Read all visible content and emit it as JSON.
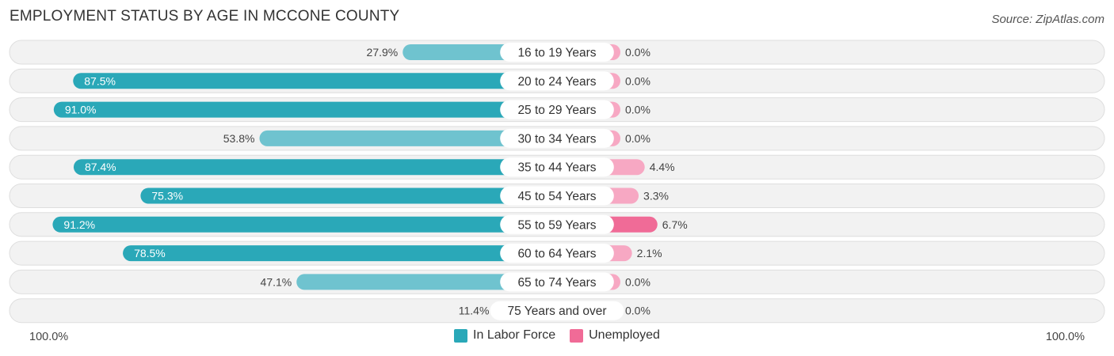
{
  "chart_data": {
    "type": "bar",
    "orientation": "diverging-horizontal",
    "title": "EMPLOYMENT STATUS BY AGE IN MCCONE COUNTY",
    "source": "Source: ZipAtlas.com",
    "categories": [
      "16 to 19 Years",
      "20 to 24 Years",
      "25 to 29 Years",
      "30 to 34 Years",
      "35 to 44 Years",
      "45 to 54 Years",
      "55 to 59 Years",
      "60 to 64 Years",
      "65 to 74 Years",
      "75 Years and over"
    ],
    "series": [
      {
        "name": "In Labor Force",
        "color": "#2aa8b8",
        "light_color": "#6fc3cf",
        "values": [
          27.9,
          87.5,
          91.0,
          53.8,
          87.4,
          75.3,
          91.2,
          78.5,
          47.1,
          11.4
        ],
        "labels": [
          "27.9%",
          "87.5%",
          "91.0%",
          "53.8%",
          "87.4%",
          "75.3%",
          "91.2%",
          "78.5%",
          "47.1%",
          "11.4%"
        ]
      },
      {
        "name": "Unemployed",
        "color": "#f06b97",
        "light_color": "#f7a8c3",
        "values": [
          0.0,
          0.0,
          0.0,
          0.0,
          4.4,
          3.3,
          6.7,
          2.1,
          0.0,
          0.0
        ],
        "labels": [
          "0.0%",
          "0.0%",
          "0.0%",
          "0.0%",
          "4.4%",
          "3.3%",
          "6.7%",
          "2.1%",
          "0.0%",
          "0.0%"
        ]
      }
    ],
    "xlim": [
      -100,
      100
    ],
    "axis_left_label": "100.0%",
    "axis_right_label": "100.0%",
    "legend_position": "bottom-center"
  }
}
